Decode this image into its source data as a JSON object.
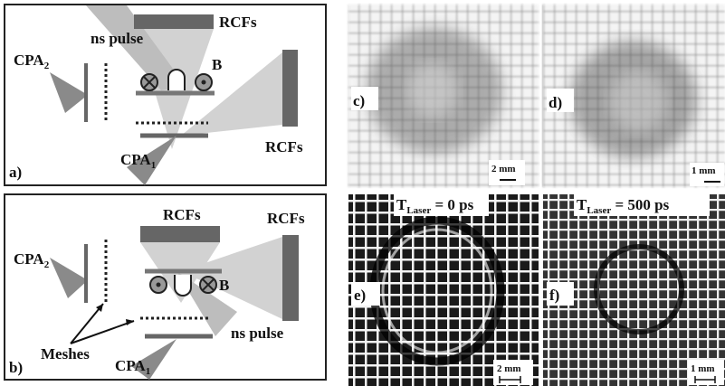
{
  "panel_a": {
    "label": "a)",
    "cpa2": {
      "main": "CPA",
      "sub": "2"
    },
    "ns_pulse": "ns pulse",
    "rcfs_top": "RCFs",
    "b_field": "B",
    "rcfs_right": "RCFs",
    "cpa1": {
      "main": "CPA",
      "sub": "1"
    }
  },
  "panel_b": {
    "label": "b)",
    "rcfs_top": "RCFs",
    "rcfs_right": "RCFs",
    "cpa2": {
      "main": "CPA",
      "sub": "2"
    },
    "b_field": "B",
    "meshes": "Meshes",
    "ns_pulse": "ns pulse",
    "cpa1": {
      "main": "CPA",
      "sub": "1"
    }
  },
  "panel_c": {
    "label": "c)",
    "scale": "2 mm"
  },
  "panel_d": {
    "label": "d)",
    "scale": "1 mm"
  },
  "panel_e": {
    "label": "e)",
    "scale": "2 mm",
    "time": {
      "main": "T",
      "sub": "Laser",
      "rest": " = 0 ps"
    }
  },
  "panel_f": {
    "label": "f)",
    "scale": "1 mm",
    "time": {
      "main": "T",
      "sub": "Laser",
      "rest": " = 500 ps"
    }
  }
}
